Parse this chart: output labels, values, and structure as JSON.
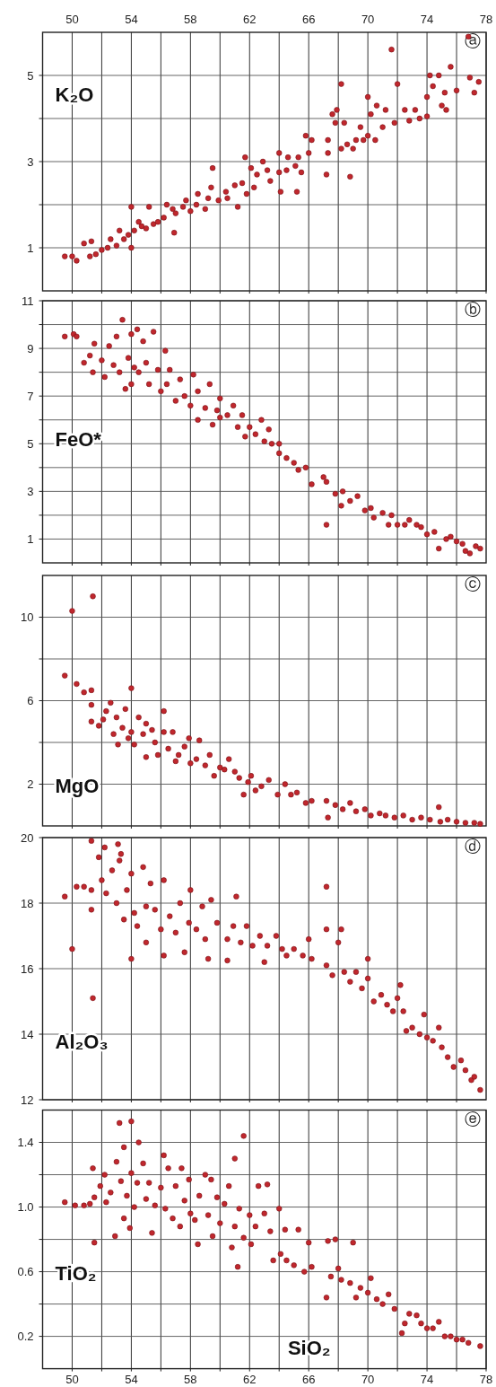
{
  "chart_data": [
    {
      "type": "scatter",
      "ylabel": "K₂O",
      "annotations": [
        "ⓐ"
      ],
      "marker": "circle",
      "grid": true,
      "tick_labels": "y",
      "xlim": [
        48,
        78
      ],
      "xticks": [
        50,
        {
          "value": 52,
          "label": null
        },
        54,
        {
          "value": 56,
          "label": null
        },
        58,
        {
          "value": 60,
          "label": null
        },
        62,
        {
          "value": 64,
          "label": null
        },
        66,
        {
          "value": 68,
          "label": null
        },
        70,
        {
          "value": 72,
          "label": null
        },
        74,
        {
          "value": 76,
          "label": null
        },
        78
      ],
      "x2lim": [
        48,
        78
      ],
      "x2ticks": [
        50,
        54,
        58,
        62,
        66,
        70,
        74,
        78
      ],
      "ylim": [
        0,
        6
      ],
      "yticks": [
        1,
        {
          "value": 2,
          "label": null
        },
        3,
        {
          "value": 4,
          "label": null
        },
        5
      ],
      "series": [
        {
          "color": "#c0272d",
          "x": [
            49.5,
            50,
            50.3,
            50.8,
            51.3,
            51.2,
            51.6,
            52,
            52.4,
            52.6,
            53,
            53.2,
            53.5,
            53.8,
            54,
            54,
            54.2,
            54.5,
            54.7,
            55,
            55.2,
            55.5,
            55.8,
            56.2,
            56.4,
            56.8,
            56.9,
            57,
            57.5,
            57.7,
            58,
            58.4,
            58.5,
            59,
            59.2,
            59.4,
            59.5,
            59.9,
            60.4,
            60.5,
            61,
            61.2,
            61.5,
            61.8,
            61.7,
            62.1,
            62.5,
            62.3,
            62.9,
            63.2,
            63.4,
            64,
            64,
            64.1,
            64.5,
            64.6,
            65.1,
            65.2,
            65.3,
            65.5,
            65.8,
            66,
            66.2,
            67.2,
            67.3,
            67.3,
            67.6,
            67.8,
            67.9,
            68.2,
            68.2,
            68.4,
            68.6,
            68.8,
            69,
            69.2,
            69.5,
            69.7,
            70,
            70,
            70.2,
            70.6,
            70.5,
            71,
            71.2,
            71.6,
            71.8,
            72,
            72.5,
            72.8,
            73.2,
            73.5,
            74,
            74,
            74.2,
            74.4,
            74.8,
            75,
            75.2,
            75.6,
            75.3,
            76,
            76.8,
            76.9,
            77.2,
            77.5
          ],
          "values": [
            0.8,
            0.8,
            0.7,
            1.1,
            1.15,
            0.8,
            0.85,
            0.95,
            1.0,
            1.2,
            1.05,
            1.4,
            1.2,
            1.3,
            1.0,
            1.95,
            1.4,
            1.6,
            1.5,
            1.45,
            1.95,
            1.55,
            1.6,
            1.7,
            2.0,
            1.9,
            1.35,
            1.8,
            1.95,
            2.1,
            1.85,
            2.0,
            2.25,
            1.9,
            2.15,
            2.4,
            2.85,
            2.1,
            2.3,
            2.15,
            2.45,
            1.95,
            2.5,
            2.25,
            3.1,
            2.85,
            2.7,
            2.4,
            3.0,
            2.8,
            2.55,
            2.75,
            3.2,
            2.3,
            2.8,
            3.1,
            2.9,
            2.3,
            3.1,
            2.75,
            3.6,
            3.2,
            3.5,
            2.7,
            3.2,
            3.5,
            4.1,
            3.9,
            4.2,
            4.8,
            3.3,
            3.9,
            3.4,
            2.65,
            3.3,
            3.5,
            3.8,
            3.5,
            4.5,
            3.6,
            4.1,
            4.3,
            3.5,
            3.8,
            4.2,
            5.6,
            3.9,
            4.8,
            4.2,
            3.95,
            4.2,
            4.0,
            4.05,
            4.5,
            5.0,
            4.75,
            5.0,
            4.3,
            4.6,
            5.2,
            4.2,
            4.65,
            5.9,
            4.95,
            4.6,
            4.85
          ]
        }
      ]
    },
    {
      "type": "scatter",
      "ylabel": "FeO*",
      "annotations": [
        "ⓑ"
      ],
      "marker": "circle",
      "grid": true,
      "tick_labels": "y",
      "xlim": [
        48,
        78
      ],
      "xticks": [
        {
          "value": 50,
          "label": null
        },
        {
          "value": 52,
          "label": null
        },
        {
          "value": 54,
          "label": null
        },
        {
          "value": 56,
          "label": null
        },
        {
          "value": 58,
          "label": null
        },
        {
          "value": 60,
          "label": null
        },
        {
          "value": 62,
          "label": null
        },
        {
          "value": 64,
          "label": null
        },
        {
          "value": 66,
          "label": null
        },
        {
          "value": 68,
          "label": null
        },
        {
          "value": 70,
          "label": null
        },
        {
          "value": 72,
          "label": null
        },
        {
          "value": 74,
          "label": null
        },
        {
          "value": 76,
          "label": null
        }
      ],
      "ylim": [
        0,
        11
      ],
      "yticks": [
        1,
        {
          "value": 2,
          "label": null
        },
        3,
        {
          "value": 4,
          "label": null
        },
        5,
        {
          "value": 6,
          "label": null
        },
        7,
        {
          "value": 8,
          "label": null
        },
        9,
        {
          "value": 10,
          "label": null
        },
        11
      ],
      "series": [
        {
          "color": "#c0272d",
          "x": [
            49.5,
            50.1,
            50.3,
            50.8,
            51.4,
            51.5,
            51.2,
            52,
            52.2,
            52.5,
            52.8,
            53,
            53.2,
            53.4,
            53.6,
            53.8,
            54,
            54,
            54.2,
            54.4,
            54.5,
            54.8,
            55,
            55.2,
            55.5,
            55.8,
            56,
            56.3,
            56.4,
            56.6,
            57,
            57.3,
            57.6,
            58,
            58.2,
            58.5,
            58.5,
            59,
            59.3,
            59.5,
            59.8,
            60,
            60,
            60.5,
            60.9,
            61.2,
            61.5,
            61.7,
            62,
            62.4,
            62.8,
            63,
            63.3,
            63.5,
            64,
            64,
            64.5,
            65,
            65.3,
            65.8,
            66.2,
            67,
            67.2,
            67.2,
            67.8,
            68.2,
            68.3,
            68.8,
            69.3,
            69.8,
            70.2,
            70.4,
            71,
            71.4,
            71.6,
            72,
            72.5,
            72.8,
            73.3,
            73.6,
            74,
            74.5,
            74.8,
            75.3,
            75.6,
            76,
            76.4,
            76.6,
            76.9,
            77.3,
            77.6
          ],
          "values": [
            9.5,
            9.6,
            9.5,
            8.4,
            8.0,
            9.2,
            8.7,
            8.5,
            7.8,
            9.1,
            8.3,
            9.5,
            8.0,
            10.2,
            7.3,
            8.6,
            7.5,
            9.6,
            8.2,
            9.8,
            8.0,
            9.3,
            8.4,
            7.5,
            9.7,
            8.1,
            7.2,
            8.9,
            7.5,
            8.1,
            6.8,
            7.7,
            7.0,
            6.6,
            7.9,
            7.2,
            6.0,
            6.5,
            7.5,
            5.8,
            6.4,
            6.9,
            6.1,
            6.2,
            6.6,
            5.7,
            6.2,
            5.3,
            5.7,
            5.4,
            6.0,
            5.1,
            5.6,
            5.0,
            4.6,
            5.0,
            4.4,
            4.2,
            3.9,
            4.0,
            3.3,
            3.6,
            3.4,
            1.6,
            2.9,
            2.4,
            3.0,
            2.6,
            2.8,
            2.2,
            2.3,
            1.9,
            2.1,
            1.6,
            2.0,
            1.6,
            1.6,
            1.8,
            1.6,
            1.5,
            1.2,
            1.3,
            0.6,
            1.0,
            1.1,
            0.9,
            0.8,
            0.5,
            0.4,
            0.7,
            0.6
          ]
        }
      ]
    },
    {
      "type": "scatter",
      "ylabel": "MgO",
      "annotations": [
        "ⓒ"
      ],
      "marker": "circle",
      "grid": true,
      "tick_labels": "y",
      "xlim": [
        48,
        78
      ],
      "xticks": [
        {
          "value": 50,
          "label": null
        },
        {
          "value": 52,
          "label": null
        },
        {
          "value": 54,
          "label": null
        },
        {
          "value": 56,
          "label": null
        },
        {
          "value": 58,
          "label": null
        },
        {
          "value": 60,
          "label": null
        },
        {
          "value": 62,
          "label": null
        },
        {
          "value": 64,
          "label": null
        },
        {
          "value": 66,
          "label": null
        },
        {
          "value": 68,
          "label": null
        },
        {
          "value": 70,
          "label": null
        },
        {
          "value": 72,
          "label": null
        },
        {
          "value": 74,
          "label": null
        },
        {
          "value": 76,
          "label": null
        }
      ],
      "ylim": [
        0,
        12
      ],
      "yticks": [
        2,
        {
          "value": 4,
          "label": null
        },
        6,
        {
          "value": 8,
          "label": null
        },
        10
      ],
      "series": [
        {
          "color": "#c0272d",
          "x": [
            49.5,
            50,
            51.4,
            50.3,
            50.8,
            51.3,
            51.3,
            51.3,
            51.8,
            52.1,
            52.3,
            52.6,
            52.8,
            53,
            53.1,
            53.4,
            53.6,
            53.8,
            54,
            54,
            54.2,
            54.5,
            54.8,
            55,
            55,
            55.4,
            55.6,
            55.8,
            56.2,
            56.2,
            56.5,
            56.8,
            57,
            57.2,
            57.6,
            57.9,
            58,
            58.4,
            58.6,
            59,
            59.3,
            59.6,
            60,
            60.3,
            60.6,
            61,
            61.3,
            61.6,
            61.9,
            62.1,
            62.4,
            62.8,
            63.3,
            63.9,
            64.4,
            64.8,
            65.2,
            65.8,
            66.2,
            67.2,
            67.3,
            67.8,
            68.3,
            68.8,
            69.2,
            69.8,
            70.2,
            70.8,
            71.2,
            71.8,
            72.4,
            73,
            73.6,
            74.2,
            74.8,
            74.9,
            75.4,
            76,
            76.6,
            77.2,
            77.6
          ],
          "values": [
            7.2,
            10.3,
            11.0,
            6.8,
            6.4,
            6.5,
            5.8,
            5.0,
            4.8,
            5.1,
            5.5,
            5.9,
            4.4,
            5.2,
            3.9,
            4.7,
            5.6,
            4.2,
            6.6,
            4.5,
            3.9,
            5.2,
            4.4,
            4.9,
            3.3,
            4.6,
            4.0,
            3.4,
            5.5,
            4.5,
            3.7,
            4.5,
            3.1,
            3.4,
            3.8,
            4.2,
            3.0,
            3.2,
            4.1,
            2.9,
            3.4,
            2.4,
            2.8,
            2.7,
            3.2,
            2.6,
            2.3,
            1.5,
            2.1,
            2.4,
            1.7,
            1.9,
            2.2,
            1.5,
            2.0,
            1.5,
            1.6,
            1.1,
            1.2,
            1.2,
            0.4,
            1.0,
            0.8,
            1.1,
            0.7,
            0.8,
            0.5,
            0.6,
            0.5,
            0.4,
            0.5,
            0.3,
            0.4,
            0.3,
            0.9,
            0.2,
            0.3,
            0.2,
            0.15,
            0.15,
            0.1
          ]
        }
      ]
    },
    {
      "type": "scatter",
      "ylabel": "Al₂O₃",
      "annotations": [
        "ⓓ"
      ],
      "marker": "circle",
      "grid": true,
      "tick_labels": "y",
      "xlim": [
        48,
        78
      ],
      "xticks": [
        {
          "value": 50,
          "label": null
        },
        {
          "value": 52,
          "label": null
        },
        {
          "value": 54,
          "label": null
        },
        {
          "value": 56,
          "label": null
        },
        {
          "value": 58,
          "label": null
        },
        {
          "value": 60,
          "label": null
        },
        {
          "value": 62,
          "label": null
        },
        {
          "value": 64,
          "label": null
        },
        {
          "value": 66,
          "label": null
        },
        {
          "value": 68,
          "label": null
        },
        {
          "value": 70,
          "label": null
        },
        {
          "value": 72,
          "label": null
        },
        {
          "value": 74,
          "label": null
        },
        {
          "value": 76,
          "label": null
        }
      ],
      "ylim": [
        12,
        20
      ],
      "yticks": [
        12,
        14,
        16,
        18,
        20
      ],
      "series": [
        {
          "color": "#c0272d",
          "x": [
            51.3,
            52.2,
            53.1,
            53.3,
            49.5,
            50,
            50.3,
            50.8,
            51.3,
            51.3,
            51.4,
            51.8,
            52,
            52.3,
            52.7,
            53,
            53.2,
            53.5,
            53.7,
            54,
            54,
            54.2,
            54.4,
            54.8,
            55,
            55,
            55.3,
            55.6,
            56,
            56.2,
            56.2,
            56.6,
            57,
            57.3,
            57.6,
            57.9,
            58,
            58.4,
            58.8,
            59,
            59.2,
            59.4,
            59.8,
            60.5,
            60.5,
            60.9,
            61.1,
            61.4,
            61.8,
            62.2,
            62.7,
            63,
            63.2,
            63.8,
            64.2,
            64.5,
            65,
            65.6,
            66,
            66.2,
            67.2,
            67.2,
            67.2,
            67.6,
            68,
            68.2,
            68.4,
            68.8,
            69.2,
            69.6,
            70,
            70,
            70.4,
            70.9,
            71.3,
            71.7,
            72,
            72.2,
            72.4,
            72.6,
            73,
            73.5,
            73.8,
            74,
            74.4,
            74.8,
            75,
            75.4,
            75.8,
            76.3,
            76.6,
            77,
            77.2,
            77.6
          ],
          "values": [
            19.9,
            19.7,
            19.8,
            19.5,
            18.2,
            16.6,
            18.5,
            18.5,
            18.4,
            17.8,
            15.1,
            19.4,
            18.7,
            18.3,
            19.0,
            18.0,
            19.3,
            17.5,
            18.4,
            16.3,
            18.9,
            17.7,
            17.3,
            19.1,
            17.9,
            16.8,
            18.6,
            17.8,
            17.2,
            18.7,
            16.4,
            17.6,
            17.1,
            18.0,
            16.5,
            17.4,
            18.4,
            17.2,
            17.9,
            16.9,
            16.3,
            18.1,
            17.4,
            16.9,
            16.25,
            17.3,
            18.2,
            16.8,
            17.3,
            16.7,
            17.0,
            16.2,
            16.7,
            17.0,
            16.6,
            16.4,
            16.6,
            16.4,
            16.9,
            16.3,
            18.5,
            17.2,
            16.1,
            15.8,
            16.8,
            17.2,
            15.9,
            15.6,
            15.9,
            15.4,
            15.7,
            16.3,
            15.0,
            15.2,
            14.9,
            14.7,
            15.1,
            15.5,
            14.7,
            14.1,
            14.2,
            14.0,
            14.6,
            13.9,
            13.8,
            14.2,
            13.6,
            13.3,
            13.0,
            13.2,
            12.9,
            12.6,
            12.7,
            12.3
          ]
        }
      ]
    },
    {
      "type": "scatter",
      "ylabel": "TiO₂",
      "xlabel": "SiO₂",
      "annotations": [
        "ⓔ"
      ],
      "marker": "circle",
      "grid": true,
      "xlim": [
        48,
        78
      ],
      "xticks": [
        50,
        {
          "value": 52,
          "label": null
        },
        54,
        {
          "value": 56,
          "label": null
        },
        58,
        {
          "value": 60,
          "label": null
        },
        62,
        {
          "value": 64,
          "label": null
        },
        66,
        {
          "value": 68,
          "label": null
        },
        70,
        {
          "value": 72,
          "label": null
        },
        74,
        {
          "value": 76,
          "label": null
        },
        78
      ],
      "ylim": [
        0,
        1.6
      ],
      "yticks": [
        0.2,
        {
          "value": 0.4,
          "label": null
        },
        0.6,
        {
          "value": 0.8,
          "label": null
        },
        {
          "value": 1.0,
          "label": "1.0"
        },
        {
          "value": 1.2,
          "label": null
        },
        1.4
      ],
      "series": [
        {
          "color": "#c0272d",
          "x": [
            49.5,
            50.2,
            50.8,
            51.2,
            51.4,
            51.5,
            51.5,
            51.9,
            52.2,
            52.3,
            52.6,
            52.9,
            53,
            53.2,
            53.3,
            53.5,
            53.5,
            53.7,
            53.9,
            54,
            54,
            54.2,
            54.4,
            54.5,
            54.8,
            55,
            55.2,
            55.4,
            55.6,
            56,
            56.2,
            56.3,
            56.5,
            56.8,
            57,
            57.3,
            57.4,
            57.6,
            57.9,
            58,
            58.3,
            58.5,
            58.6,
            59,
            59.2,
            59.4,
            59.5,
            59.8,
            60,
            60.3,
            60.6,
            60.8,
            61,
            61,
            61.2,
            61.3,
            61.6,
            61.6,
            62,
            62.1,
            62.4,
            62.6,
            63,
            63.2,
            63.4,
            63.6,
            64,
            64.1,
            64.4,
            64.5,
            65,
            65.3,
            65.7,
            66,
            66.2,
            67.2,
            67.3,
            67.5,
            67.8,
            68,
            68.2,
            68.8,
            69,
            69.2,
            69.5,
            70,
            70.2,
            70.6,
            71,
            71.4,
            71.8,
            72.3,
            72.5,
            72.8,
            73.3,
            73.6,
            74,
            74.4,
            74.8,
            75.2,
            75.6,
            76,
            76.4,
            76.8,
            77.6
          ],
          "values": [
            1.03,
            1.01,
            1.01,
            1.02,
            1.24,
            0.78,
            1.06,
            1.13,
            1.2,
            1.03,
            1.09,
            0.82,
            1.28,
            1.52,
            1.16,
            0.93,
            1.37,
            1.07,
            0.87,
            1.53,
            1.21,
            1.0,
            1.15,
            1.4,
            1.27,
            1.05,
            1.15,
            0.84,
            1.01,
            1.12,
            1.32,
            0.99,
            1.24,
            0.93,
            1.13,
            0.88,
            1.24,
            1.04,
            1.17,
            0.96,
            0.92,
            0.77,
            1.07,
            1.2,
            0.95,
            1.17,
            0.82,
            1.06,
            0.9,
            1.02,
            1.13,
            0.75,
            1.3,
            0.88,
            0.63,
            0.99,
            1.44,
            0.81,
            0.95,
            0.77,
            0.88,
            1.13,
            0.96,
            1.14,
            0.85,
            0.67,
            0.99,
            0.71,
            0.86,
            0.67,
            0.64,
            0.86,
            0.6,
            0.78,
            0.63,
            0.44,
            0.79,
            0.57,
            0.8,
            0.62,
            0.55,
            0.53,
            0.78,
            0.44,
            0.5,
            0.47,
            0.56,
            0.43,
            0.4,
            0.46,
            0.37,
            0.22,
            0.28,
            0.34,
            0.33,
            0.28,
            0.25,
            0.25,
            0.29,
            0.2,
            0.2,
            0.18,
            0.18,
            0.16,
            0.14
          ]
        }
      ]
    }
  ]
}
